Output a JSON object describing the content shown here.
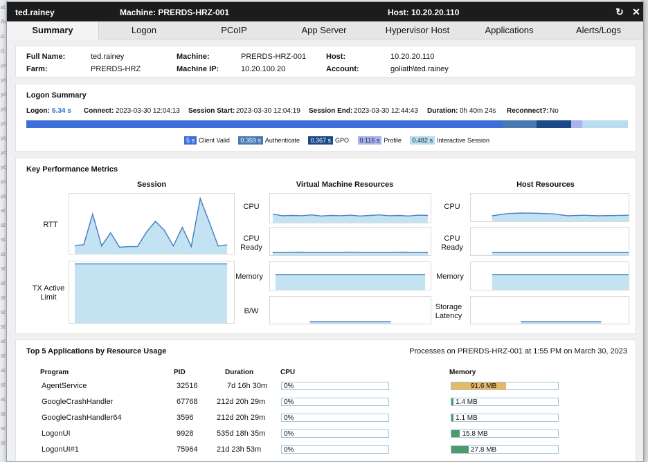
{
  "background": {
    "strip_texts": [
      "st",
      "Ac",
      "d.",
      "d.",
      "yc",
      "yc",
      "yc",
      "yc",
      "yc",
      "yc",
      "yc",
      "yc",
      "yc",
      "yc",
      "st",
      "st",
      "st",
      "st",
      "st",
      "st",
      "st",
      "st",
      "st",
      "st",
      "st",
      "st",
      "st",
      "st",
      "st",
      "st",
      "st"
    ]
  },
  "titlebar": {
    "user": "ted.rainey",
    "machine": "Machine: PRERDS-HRZ-001",
    "host": "Host: 10.20.20.110",
    "refresh_icon": "refresh-icon",
    "close_icon": "close-icon",
    "refresh_glyph": "↻",
    "close_glyph": "✕"
  },
  "tabs": [
    {
      "label": "Summary",
      "active": true
    },
    {
      "label": "Logon"
    },
    {
      "label": "PCoIP"
    },
    {
      "label": "App Server"
    },
    {
      "label": "Hypervisor Host"
    },
    {
      "label": "Applications"
    },
    {
      "label": "Alerts/Logs"
    }
  ],
  "info": {
    "full_name_label": "Full Name:",
    "full_name": "ted.rainey",
    "farm_label": "Farm:",
    "farm": "PRERDS-HRZ",
    "machine_label": "Machine:",
    "machine": "PRERDS-HRZ-001",
    "machine_ip_label": "Machine IP:",
    "machine_ip": "10.20.100.20",
    "host_label": "Host:",
    "host": "10.20.20.110",
    "account_label": "Account:",
    "account": "goliath\\ted.rainey"
  },
  "logon_summary": {
    "title": "Logon Summary",
    "logon_label": "Logon:",
    "logon": "6.34 s",
    "connect_label": "Connect:",
    "connect": "2023-03-30 12:04:13",
    "session_start_label": "Session Start:",
    "session_start": "2023-03-30 12:04:19",
    "session_end_label": "Session End:",
    "session_end": "2023-03-30 12:44:43",
    "duration_label": "Duration:",
    "duration": "0h 40m 24s",
    "reconnect_label": "Reconnect?:",
    "reconnect": "No",
    "phases": [
      {
        "value": "5 s",
        "name": "Client Valid",
        "color": "#3d6fd9",
        "seconds": 5
      },
      {
        "value": "0.359 s",
        "name": "Authenticate",
        "color": "#4a7ab5",
        "seconds": 0.359
      },
      {
        "value": "0.367 s",
        "name": "GPO",
        "color": "#1b4a86",
        "seconds": 0.367
      },
      {
        "value": "0.116 s",
        "name": "Profile",
        "color": "#a7b4ee",
        "seconds": 0.116
      },
      {
        "value": "0.482 s",
        "name": "Interactive Session",
        "color": "#b9dcef",
        "seconds": 0.482
      }
    ]
  },
  "kpm": {
    "title": "Key Performance Metrics",
    "session_title": "Session",
    "vm_title": "Virtual Machine Resources",
    "host_title": "Host Resources",
    "rtt_label": "RTT",
    "tx_label_1": "TX Active",
    "tx_label_2": "Limit",
    "vm_cpu_label": "CPU",
    "vm_cpu_ready_1": "CPU",
    "vm_cpu_ready_2": "Ready",
    "vm_memory_label": "Memory",
    "vm_bw_label": "B/W",
    "host_cpu_label": "CPU",
    "host_cpu_ready_1": "CPU",
    "host_cpu_ready_2": "Ready",
    "host_memory_label": "Memory",
    "host_storage_1": "Storage",
    "host_storage_2": "Latency",
    "line_color": "#4a7fc1",
    "fill_color": "#c3e3f3"
  },
  "apps": {
    "title": "Top 5 Applications by Resource Usage",
    "processes_caption": "Processes on PRERDS-HRZ-001 at 1:55 PM on March 30, 2023",
    "headers": {
      "program": "Program",
      "pid": "PID",
      "duration": "Duration",
      "cpu": "CPU",
      "memory": "Memory"
    },
    "rows": [
      {
        "program": "AgentService",
        "pid": "32516",
        "duration": "7d 16h 30m",
        "cpu": "0%",
        "memory": "91.6 MB",
        "memory_fraction": 0.51,
        "memory_color": "#e8b865"
      },
      {
        "program": "GoogleCrashHandler",
        "pid": "67768",
        "duration": "212d 20h 29m",
        "cpu": "0%",
        "memory": "1.4 MB",
        "memory_fraction": 0.02,
        "memory_color": "#4f9a6a"
      },
      {
        "program": "GoogleCrashHandler64",
        "pid": "3596",
        "duration": "212d 20h 29m",
        "cpu": "0%",
        "memory": "1.1 MB",
        "memory_fraction": 0.02,
        "memory_color": "#4f9a6a"
      },
      {
        "program": "LogonUI",
        "pid": "9928",
        "duration": "535d 18h 35m",
        "cpu": "0%",
        "memory": "15.8 MB",
        "memory_fraction": 0.08,
        "memory_color": "#4f9a6a"
      },
      {
        "program": "LogonUI#1",
        "pid": "75964",
        "duration": "21d 23h 53m",
        "cpu": "0%",
        "memory": "27.8 MB",
        "memory_fraction": 0.16,
        "memory_color": "#4f9a6a"
      }
    ]
  }
}
